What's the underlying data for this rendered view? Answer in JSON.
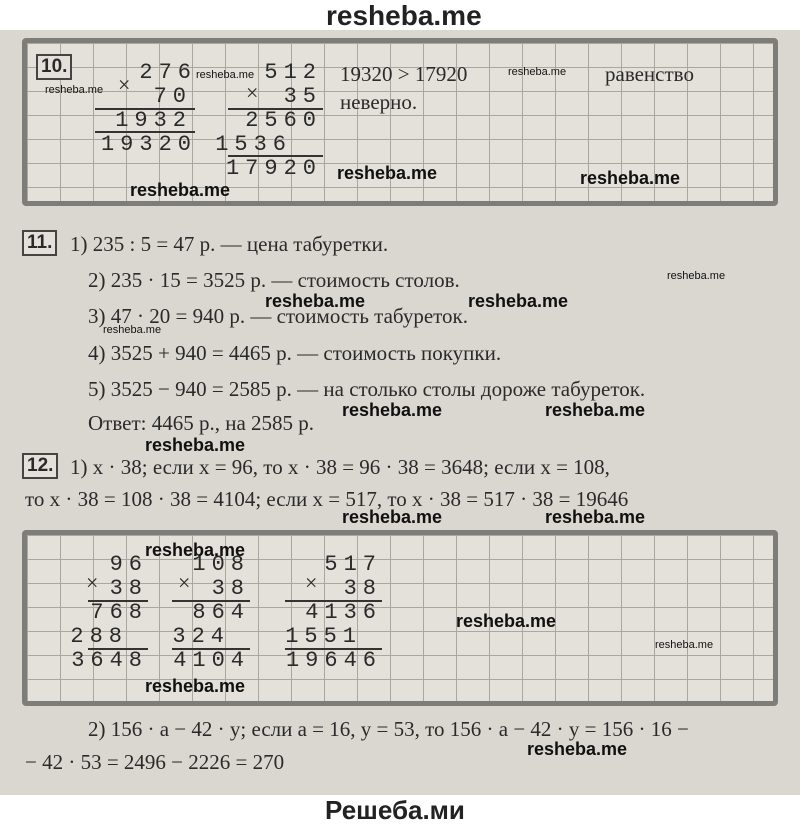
{
  "header": {
    "title": "resheba.me"
  },
  "task10": {
    "number": "10.",
    "mult1": {
      "sign": "×",
      "a": "276",
      "b": "70",
      "partial": "1932",
      "result": "19320"
    },
    "mult2": {
      "sign": "×",
      "a": "512",
      "b": "35",
      "partial1": "2560",
      "partial2": "1536",
      "result": "17920"
    },
    "comparison": "19320 > 17920",
    "conclusion": [
      "равенство",
      "неверно."
    ]
  },
  "task11": {
    "number": "11.",
    "lines": [
      "1) 235 : 5 = 47 р. — цена табуретки.",
      "2) 235 · 15 = 3525 р. — стоимость столов.",
      "3) 47 · 20 = 940 р. — стоимость табуреток.",
      "4) 3525 + 940 = 4465 р. — стоимость покупки.",
      "5) 3525 − 940 = 2585 р. — на столько столы дороже табуреток."
    ],
    "answer": "Ответ: 4465 р., на 2585 р."
  },
  "task12": {
    "number": "12.",
    "lines": [
      "1) x · 38; если x = 96, то x · 38 = 96 · 38 = 3648; если x = 108,",
      "то x · 38 = 108 · 38 = 4104; если x = 517, то x · 38 = 517 · 38 = 19646"
    ],
    "mults": [
      {
        "sign": "×",
        "a": "96",
        "b": "38",
        "partial1": "768",
        "partial2": "288",
        "result": "3648"
      },
      {
        "sign": "×",
        "a": "108",
        "b": "38",
        "partial1": "864",
        "partial2": "324",
        "result": "4104"
      },
      {
        "sign": "×",
        "a": "517",
        "b": "38",
        "partial1": "4136",
        "partial2": "1551",
        "result": "19646"
      }
    ],
    "part2": [
      "2) 156 · a − 42 · y; если a = 16, y = 53, то 156 · a − 42 · y = 156 · 16 −",
      "− 42 · 53 = 2496 − 2226 = 270"
    ]
  },
  "watermarks": [
    "resheba.me",
    "resheba.me",
    "resheba.me",
    "resheba.me",
    "resheba.me",
    "resheba.me",
    "resheba.me",
    "resheba.me",
    "resheba.me",
    "resheba.me",
    "resheba.me",
    "resheba.me",
    "resheba.me",
    "resheba.me",
    "resheba.me",
    "resheba.me",
    "resheba.me",
    "resheba.me",
    "resheba.me",
    "resheba.me"
  ],
  "footer": {
    "title": "Решеба.ми"
  }
}
